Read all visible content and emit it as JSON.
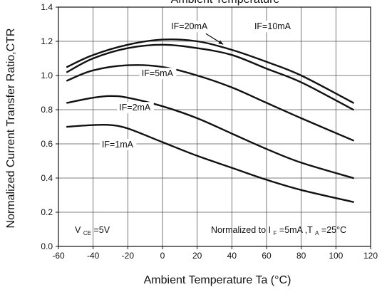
{
  "chart_data": {
    "type": "line",
    "title": "Ambient Temperature",
    "xlabel": "Ambient Temperature Ta (°C)",
    "ylabel": "Normalized Current Transfer Ratio,CTR",
    "xlim": [
      -60,
      120
    ],
    "ylim": [
      0.0,
      1.4
    ],
    "x_ticks": [
      -60,
      -40,
      -20,
      0,
      20,
      40,
      60,
      80,
      100,
      120
    ],
    "y_ticks": [
      0.0,
      0.2,
      0.4,
      0.6,
      0.8,
      1.0,
      1.2,
      1.4
    ],
    "x_tick_labels": [
      "-60",
      "-40",
      "-20",
      "0",
      "20",
      "40",
      "60",
      "80",
      "100",
      "120"
    ],
    "y_tick_labels": [
      "0.0",
      "0.2",
      "0.4",
      "0.6",
      "0.8",
      "1.0",
      "1.2",
      "1.4"
    ],
    "grid": true,
    "series": [
      {
        "name": "IF=20mA",
        "x": [
          -55,
          -40,
          -20,
          0,
          20,
          40,
          60,
          80,
          110
        ],
        "y": [
          1.05,
          1.12,
          1.18,
          1.21,
          1.2,
          1.15,
          1.08,
          1.0,
          0.84
        ]
      },
      {
        "name": "IF=10mA",
        "x": [
          -55,
          -40,
          -20,
          0,
          20,
          40,
          60,
          80,
          110
        ],
        "y": [
          1.02,
          1.1,
          1.16,
          1.18,
          1.16,
          1.12,
          1.04,
          0.96,
          0.8
        ]
      },
      {
        "name": "IF=5mA",
        "x": [
          -55,
          -40,
          -20,
          0,
          20,
          40,
          60,
          80,
          110
        ],
        "y": [
          0.97,
          1.03,
          1.06,
          1.05,
          1.0,
          0.93,
          0.84,
          0.75,
          0.62
        ]
      },
      {
        "name": "IF=2mA",
        "x": [
          -55,
          -40,
          -30,
          -20,
          0,
          20,
          40,
          60,
          80,
          110
        ],
        "y": [
          0.84,
          0.87,
          0.88,
          0.87,
          0.82,
          0.75,
          0.66,
          0.57,
          0.49,
          0.4
        ]
      },
      {
        "name": "IF=1mA",
        "x": [
          -55,
          -40,
          -30,
          -20,
          0,
          20,
          40,
          60,
          80,
          110
        ],
        "y": [
          0.7,
          0.71,
          0.71,
          0.69,
          0.61,
          0.53,
          0.46,
          0.39,
          0.33,
          0.26
        ]
      }
    ],
    "annotations": {
      "vce": {
        "main": "V",
        "sub": "CE",
        "rest": "=5V"
      },
      "normalized": {
        "prefix": "Normalized to I",
        "sub1": "F",
        "mid": "=5mA ,T",
        "sub2": "A",
        "suffix": "=25°C"
      }
    }
  }
}
